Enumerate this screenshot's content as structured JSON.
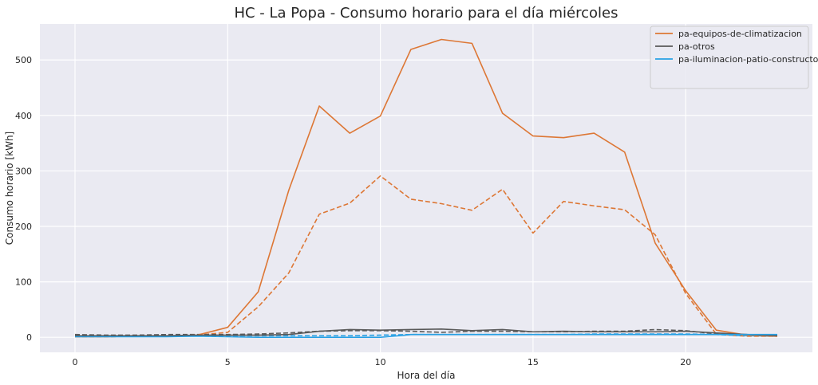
{
  "chart_data": {
    "type": "line",
    "title": "HC - La Popa - Consumo horario para el día miércoles",
    "xlabel": "Hora del día",
    "ylabel": "Consumo horario [kWh]",
    "xlim": [
      -1.15,
      24.15
    ],
    "ylim": [
      -27,
      565
    ],
    "xticks": [
      0,
      5,
      10,
      15,
      20
    ],
    "yticks": [
      0,
      100,
      200,
      300,
      400,
      500
    ],
    "grid": true,
    "legend_position": "top-right",
    "x": [
      0,
      1,
      2,
      3,
      4,
      5,
      6,
      7,
      8,
      9,
      10,
      11,
      12,
      13,
      14,
      15,
      16,
      17,
      18,
      19,
      20,
      21,
      22,
      23
    ],
    "series": [
      {
        "name": "pa-equipos-de-climatizacion",
        "color": "#dd7735",
        "solid": [
          1,
          1,
          2,
          2,
          4,
          18,
          82,
          265,
          417,
          368,
          399,
          519,
          537,
          530,
          404,
          363,
          360,
          368,
          334,
          170,
          84,
          13,
          4,
          2
        ],
        "dashed": [
          1,
          1,
          2,
          2,
          4,
          9,
          55,
          116,
          222,
          242,
          291,
          249,
          241,
          229,
          267,
          188,
          245,
          237,
          230,
          185,
          79,
          6,
          2,
          2
        ]
      },
      {
        "name": "pa-otros",
        "color": "#595959",
        "solid": [
          3,
          3,
          3,
          3,
          4,
          4,
          4,
          5,
          11,
          14,
          13,
          14,
          15,
          12,
          14,
          10,
          11,
          10,
          10,
          10,
          11,
          8,
          5,
          3
        ],
        "dashed": [
          5,
          4,
          4,
          5,
          5,
          5,
          6,
          8,
          11,
          12,
          12,
          11,
          9,
          11,
          11,
          10,
          10,
          11,
          11,
          14,
          12,
          6,
          5,
          4
        ]
      },
      {
        "name": "pa-iluminacion-patio-constructor",
        "color": "#27a0e4",
        "solid": [
          1,
          1,
          1,
          1,
          2,
          1,
          0,
          0,
          0,
          0,
          0,
          5,
          5,
          5,
          5,
          5,
          5,
          5,
          5,
          5,
          5,
          5,
          5,
          5
        ],
        "dashed": [
          2,
          2,
          2,
          3,
          3,
          3,
          3,
          3,
          3,
          3,
          4,
          5,
          5,
          5,
          5,
          5,
          5,
          6,
          6,
          6,
          6,
          5,
          3,
          2
        ]
      }
    ]
  }
}
